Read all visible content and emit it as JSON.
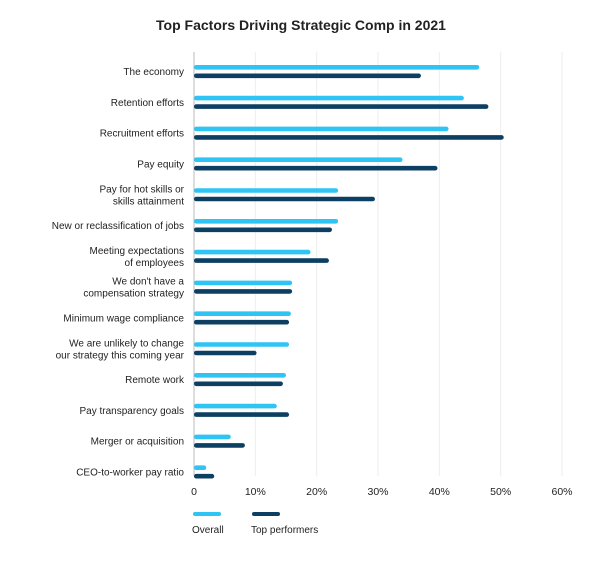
{
  "chart_data": {
    "type": "bar",
    "orientation": "horizontal",
    "title": "Top Factors Driving Strategic Comp in 2021",
    "xlabel": "",
    "ylabel": "",
    "xlim": [
      0,
      60
    ],
    "ticks": [
      "0",
      "10%",
      "20%",
      "30%",
      "40%",
      "50%",
      "60%"
    ],
    "tick_values": [
      0,
      10,
      20,
      30,
      40,
      50,
      60
    ],
    "grid": true,
    "legend_position": "bottom-left",
    "categories": [
      [
        "The economy"
      ],
      [
        "Retention efforts"
      ],
      [
        "Recruitment efforts"
      ],
      [
        "Pay equity"
      ],
      [
        "Pay for hot skills or",
        "skills attainment"
      ],
      [
        "New or reclassification of jobs"
      ],
      [
        "Meeting expectations",
        "of employees"
      ],
      [
        "We don't have a",
        "compensation strategy"
      ],
      [
        "Minimum wage compliance"
      ],
      [
        "We are unlikely to change",
        "our strategy this coming year"
      ],
      [
        "Remote work"
      ],
      [
        "Pay transparency goals"
      ],
      [
        "Merger or acquisition"
      ],
      [
        "CEO-to-worker pay ratio"
      ]
    ],
    "series": [
      {
        "name": "Overall",
        "color": "#2ec4f4",
        "values": [
          46.5,
          44.0,
          41.5,
          34.0,
          23.5,
          23.5,
          19.0,
          16.0,
          15.8,
          15.5,
          15.0,
          13.5,
          6.0,
          2.0
        ]
      },
      {
        "name": "Top performers",
        "color": "#0d3f63",
        "values": [
          37.0,
          48.0,
          50.5,
          39.7,
          29.5,
          22.5,
          22.0,
          16.0,
          15.5,
          10.2,
          14.5,
          15.5,
          8.3,
          3.3
        ]
      }
    ]
  }
}
